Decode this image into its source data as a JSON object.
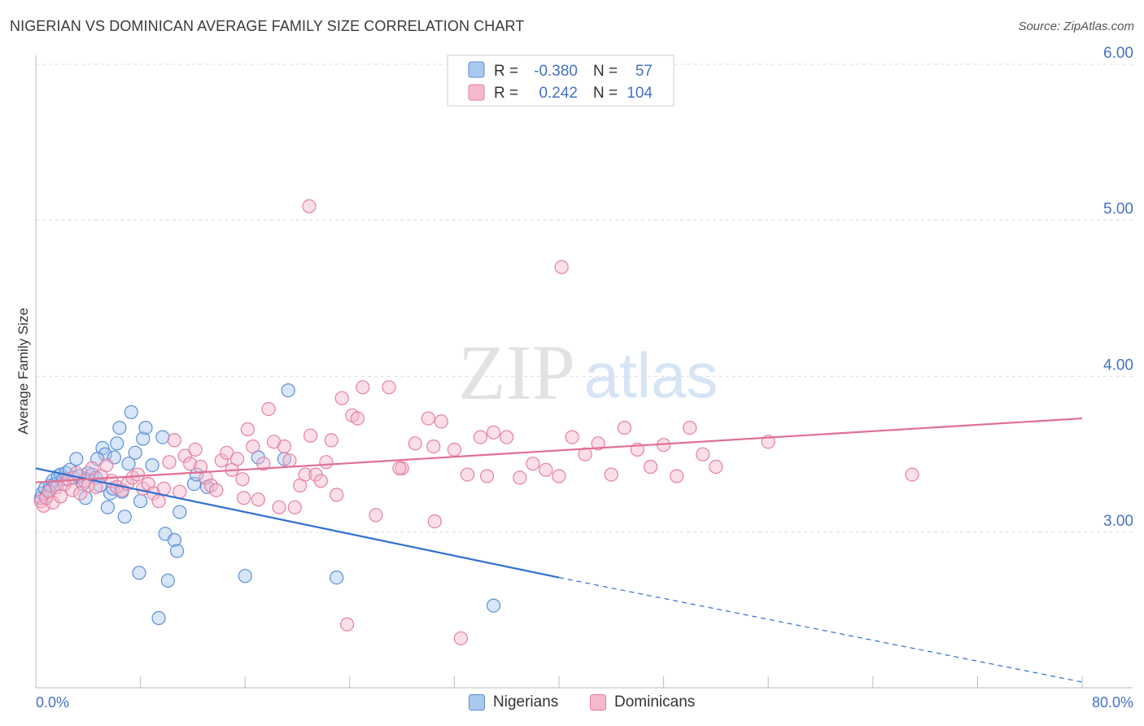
{
  "header": {
    "title": "NIGERIAN VS DOMINICAN AVERAGE FAMILY SIZE CORRELATION CHART",
    "source": "Source: ZipAtlas.com"
  },
  "watermark": {
    "zip": "ZIP",
    "atlas": "atlas"
  },
  "colors": {
    "nigerians_fill": "#a9c8f0",
    "nigerians_stroke": "#5b8fd6",
    "nigerians_line": "#2f6fd0",
    "dominicans_fill": "#f5b8cc",
    "dominicans_stroke": "#e57fa3",
    "dominicans_line": "#e0708f",
    "tick_label": "#4472c4",
    "grid": "#dddddd"
  },
  "legend_box": {
    "rows": [
      {
        "r_label": "R =",
        "r_value": "-0.380",
        "n_label": "N =",
        "n_value": "57",
        "series": "nigerians"
      },
      {
        "r_label": "R =",
        "r_value": "0.242",
        "n_label": "N =",
        "n_value": "104",
        "series": "dominicans"
      }
    ]
  },
  "chart_data": {
    "type": "scatter",
    "title": "NIGERIAN VS DOMINICAN AVERAGE FAMILY SIZE CORRELATION CHART",
    "xlabel": "",
    "ylabel": "Average Family Size",
    "xlim": [
      0,
      80
    ],
    "ylim": [
      2.0,
      6.1
    ],
    "x_tick_labels": [
      "0.0%",
      "80.0%"
    ],
    "y_ticks": [
      3.0,
      4.0,
      5.0,
      6.0
    ],
    "y_tick_labels": [
      "3.00",
      "4.00",
      "5.00",
      "6.00"
    ],
    "grid": true,
    "legend_placement": "bottom",
    "series": [
      {
        "name": "Nigerians",
        "r": -0.38,
        "n": 57,
        "trend": {
          "x0": 0,
          "y0": 3.41,
          "x_solid_end": 40,
          "y_solid_end": 2.71,
          "x1": 80,
          "y1": 2.04
        },
        "points": [
          [
            0.4,
            3.22
          ],
          [
            0.5,
            3.25
          ],
          [
            0.7,
            3.28
          ],
          [
            0.8,
            3.23
          ],
          [
            1.0,
            3.27
          ],
          [
            1.1,
            3.3
          ],
          [
            1.3,
            3.33
          ],
          [
            1.5,
            3.31
          ],
          [
            1.7,
            3.36
          ],
          [
            1.9,
            3.37
          ],
          [
            2.1,
            3.34
          ],
          [
            2.3,
            3.38
          ],
          [
            2.6,
            3.4
          ],
          [
            2.9,
            3.35
          ],
          [
            3.1,
            3.47
          ],
          [
            3.3,
            3.36
          ],
          [
            3.6,
            3.31
          ],
          [
            3.8,
            3.22
          ],
          [
            4.0,
            3.38
          ],
          [
            4.3,
            3.37
          ],
          [
            4.6,
            3.35
          ],
          [
            4.9,
            3.3
          ],
          [
            5.1,
            3.54
          ],
          [
            5.3,
            3.5
          ],
          [
            5.5,
            3.16
          ],
          [
            5.7,
            3.25
          ],
          [
            5.9,
            3.28
          ],
          [
            6.0,
            3.48
          ],
          [
            6.2,
            3.57
          ],
          [
            6.4,
            3.67
          ],
          [
            6.6,
            3.26
          ],
          [
            6.8,
            3.1
          ],
          [
            7.1,
            3.44
          ],
          [
            7.3,
            3.77
          ],
          [
            7.6,
            3.51
          ],
          [
            7.9,
            2.74
          ],
          [
            8.2,
            3.6
          ],
          [
            8.4,
            3.67
          ],
          [
            8.9,
            3.43
          ],
          [
            9.7,
            3.61
          ],
          [
            9.9,
            2.99
          ],
          [
            10.1,
            2.69
          ],
          [
            10.6,
            2.95
          ],
          [
            10.8,
            2.88
          ],
          [
            11.0,
            3.13
          ],
          [
            12.1,
            3.31
          ],
          [
            12.3,
            3.37
          ],
          [
            13.1,
            3.29
          ],
          [
            16.0,
            2.72
          ],
          [
            17.0,
            3.48
          ],
          [
            19.0,
            3.47
          ],
          [
            19.3,
            3.91
          ],
          [
            23.0,
            2.71
          ],
          [
            35.0,
            2.53
          ],
          [
            9.4,
            2.45
          ],
          [
            4.7,
            3.47
          ],
          [
            8.0,
            3.2
          ]
        ]
      },
      {
        "name": "Dominicans",
        "r": 0.242,
        "n": 104,
        "trend": {
          "x0": 0,
          "y0": 3.32,
          "x1": 80,
          "y1": 3.73
        },
        "points": [
          [
            0.4,
            3.2
          ],
          [
            0.6,
            3.17
          ],
          [
            0.8,
            3.22
          ],
          [
            1.0,
            3.26
          ],
          [
            1.3,
            3.19
          ],
          [
            1.6,
            3.29
          ],
          [
            1.9,
            3.23
          ],
          [
            2.2,
            3.31
          ],
          [
            2.5,
            3.34
          ],
          [
            2.8,
            3.27
          ],
          [
            3.1,
            3.38
          ],
          [
            3.4,
            3.25
          ],
          [
            3.7,
            3.33
          ],
          [
            4.0,
            3.3
          ],
          [
            4.3,
            3.41
          ],
          [
            4.6,
            3.29
          ],
          [
            5.0,
            3.36
          ],
          [
            5.4,
            3.43
          ],
          [
            5.8,
            3.33
          ],
          [
            6.2,
            3.29
          ],
          [
            6.6,
            3.27
          ],
          [
            7.0,
            3.31
          ],
          [
            7.4,
            3.35
          ],
          [
            7.8,
            3.37
          ],
          [
            8.2,
            3.28
          ],
          [
            8.6,
            3.31
          ],
          [
            9.0,
            3.25
          ],
          [
            9.4,
            3.2
          ],
          [
            9.8,
            3.28
          ],
          [
            10.2,
            3.45
          ],
          [
            10.6,
            3.59
          ],
          [
            11.0,
            3.26
          ],
          [
            11.4,
            3.49
          ],
          [
            11.8,
            3.44
          ],
          [
            12.2,
            3.53
          ],
          [
            12.6,
            3.42
          ],
          [
            13.0,
            3.35
          ],
          [
            13.4,
            3.3
          ],
          [
            13.8,
            3.27
          ],
          [
            14.2,
            3.46
          ],
          [
            14.6,
            3.51
          ],
          [
            15.0,
            3.4
          ],
          [
            15.4,
            3.47
          ],
          [
            15.8,
            3.34
          ],
          [
            16.2,
            3.66
          ],
          [
            16.6,
            3.55
          ],
          [
            17.0,
            3.21
          ],
          [
            17.4,
            3.44
          ],
          [
            17.8,
            3.79
          ],
          [
            18.2,
            3.58
          ],
          [
            18.6,
            3.16
          ],
          [
            19.0,
            3.55
          ],
          [
            19.4,
            3.46
          ],
          [
            19.8,
            3.16
          ],
          [
            20.2,
            3.3
          ],
          [
            20.6,
            3.37
          ],
          [
            21.0,
            3.62
          ],
          [
            21.4,
            3.37
          ],
          [
            21.8,
            3.33
          ],
          [
            22.2,
            3.45
          ],
          [
            22.6,
            3.59
          ],
          [
            23.0,
            3.24
          ],
          [
            23.4,
            3.86
          ],
          [
            23.8,
            2.41
          ],
          [
            24.2,
            3.75
          ],
          [
            24.6,
            3.73
          ],
          [
            25.0,
            3.93
          ],
          [
            26.0,
            3.11
          ],
          [
            27.0,
            3.93
          ],
          [
            28.0,
            3.41
          ],
          [
            29.0,
            3.57
          ],
          [
            30.0,
            3.73
          ],
          [
            30.4,
            3.55
          ],
          [
            31.0,
            3.71
          ],
          [
            32.0,
            3.53
          ],
          [
            32.5,
            2.32
          ],
          [
            33.0,
            3.37
          ],
          [
            34.0,
            3.61
          ],
          [
            34.5,
            3.36
          ],
          [
            35.0,
            3.64
          ],
          [
            36.0,
            3.61
          ],
          [
            37.0,
            3.35
          ],
          [
            38.0,
            3.44
          ],
          [
            39.0,
            3.4
          ],
          [
            40.0,
            3.36
          ],
          [
            41.0,
            3.61
          ],
          [
            42.0,
            3.5
          ],
          [
            43.0,
            3.57
          ],
          [
            44.0,
            3.37
          ],
          [
            45.0,
            3.67
          ],
          [
            46.0,
            3.53
          ],
          [
            47.0,
            3.42
          ],
          [
            48.0,
            3.56
          ],
          [
            49.0,
            3.36
          ],
          [
            50.0,
            3.67
          ],
          [
            51.0,
            3.5
          ],
          [
            52.0,
            3.42
          ],
          [
            56.0,
            3.58
          ],
          [
            67.0,
            3.37
          ],
          [
            27.8,
            3.41
          ],
          [
            20.9,
            5.09
          ],
          [
            40.2,
            4.7
          ],
          [
            30.5,
            3.07
          ],
          [
            15.9,
            3.22
          ]
        ]
      }
    ]
  }
}
